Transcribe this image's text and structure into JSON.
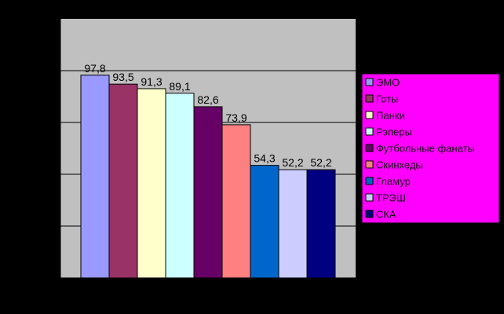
{
  "chart_data": {
    "type": "bar",
    "title": "",
    "xlabel": "",
    "ylabel": "",
    "ylim": [
      0,
      125
    ],
    "grid": "horizontal",
    "legend_position": "right",
    "plot_background": "#C0C0C0",
    "legend_background": "#FF00FF",
    "categories": [
      "ЭМО",
      "Готы",
      "Панки",
      "Рэперы",
      "Футбольные фанаты",
      "Скинхеды",
      "Гламур",
      "ТРЭШ",
      "СКА"
    ],
    "values": [
      97.8,
      93.5,
      91.3,
      89.1,
      82.6,
      73.9,
      54.3,
      52.2,
      52.2
    ],
    "value_labels": [
      "97,8",
      "93,5",
      "91,3",
      "89,1",
      "82,6",
      "73,9",
      "54,3",
      "52,2",
      "52,2"
    ],
    "colors": [
      "#9999FF",
      "#993366",
      "#FFFFCC",
      "#CCFFFF",
      "#660066",
      "#FF8080",
      "#0066CC",
      "#CCCCFF",
      "#000080"
    ]
  }
}
